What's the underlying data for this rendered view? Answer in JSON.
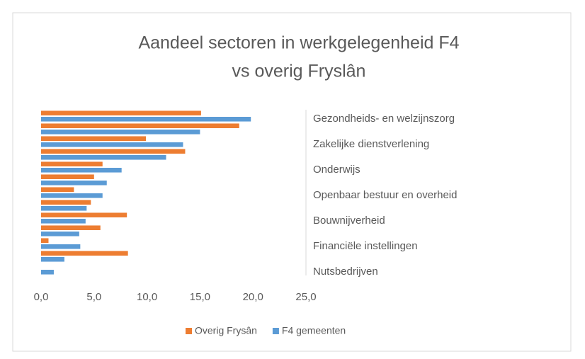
{
  "chart_data": {
    "type": "hbar",
    "title": [
      "Aandeel sectoren in werkgelegenheid F4",
      "vs overig Fryslân"
    ],
    "categories": [
      "Gezondheids- en welzijnszorg",
      null,
      "Zakelijke dienstverlening",
      null,
      "Onderwijs",
      null,
      "Openbaar bestuur en overheid",
      null,
      "Bouwnijverheid",
      null,
      "Financiële instellingen",
      null,
      "Nutsbedrijven"
    ],
    "series": [
      {
        "name": "Overig Frysân",
        "color": "#ed7d31",
        "values": [
          15.1,
          18.7,
          9.9,
          13.6,
          5.8,
          5.0,
          3.1,
          4.7,
          8.1,
          5.6,
          0.7,
          8.2,
          0
        ]
      },
      {
        "name": "F4 gemeenten",
        "color": "#5b9bd5",
        "values": [
          19.8,
          15.0,
          13.4,
          11.8,
          7.6,
          6.2,
          5.8,
          4.3,
          4.2,
          3.6,
          3.7,
          2.2,
          1.2
        ]
      }
    ],
    "xlim": [
      0,
      25
    ],
    "xticks": [
      {
        "value": 0,
        "label": "0,0"
      },
      {
        "value": 5,
        "label": "5,0"
      },
      {
        "value": 10,
        "label": "10,0"
      },
      {
        "value": 15,
        "label": "15,0"
      },
      {
        "value": 20,
        "label": "20,0"
      },
      {
        "value": 25,
        "label": "25,0"
      }
    ],
    "legend": "bottom"
  }
}
